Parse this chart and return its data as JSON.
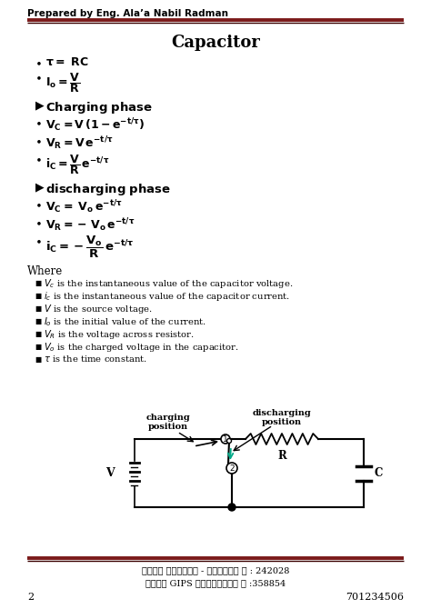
{
  "title": "Capacitor",
  "header": "Prepared by Eng. Ala’a Nabil Radman",
  "footer_line1": "مركز الرواد - المعلا ت : 242028",
  "footer_line2": "مركز GIPS المنصورة ت :358854",
  "page_num": "2",
  "page_code": "701234506",
  "line_color": "#7B1A1A",
  "bg_color": "#ffffff",
  "text_color": "#000000"
}
